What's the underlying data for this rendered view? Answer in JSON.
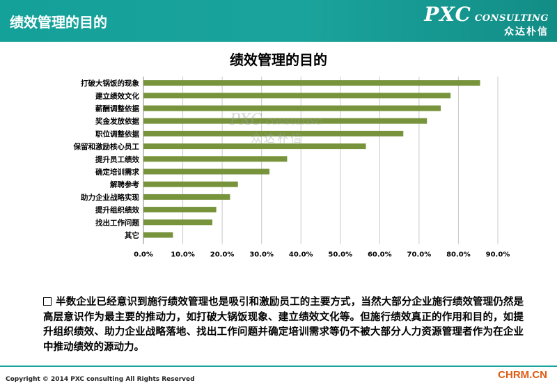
{
  "header": {
    "title": "绩效管理的目的",
    "logo_main": "PXC",
    "logo_sub": "CONSULTING",
    "logo_cn": "众达朴信",
    "color": "#1aa39c"
  },
  "watermark": {
    "main": "PXC",
    "sub": "CONSULTING",
    "cn": "众达朴信"
  },
  "chart_data": {
    "type": "bar",
    "orientation": "horizontal",
    "title": "绩效管理的目的",
    "categories": [
      "打破大锅饭的现象",
      "建立绩效文化",
      "薪酬调整依据",
      "奖金发放依据",
      "职位调整依据",
      "保留和激励核心员工",
      "提升员工绩效",
      "确定培训需求",
      "解聘参考",
      "助力企业战略实现",
      "提升组织绩效",
      "找出工作问题",
      "其它"
    ],
    "values": [
      85.5,
      78,
      75.5,
      72,
      66,
      56.5,
      36.5,
      32,
      24,
      22,
      18.5,
      17.5,
      7.5
    ],
    "xlim": [
      0,
      90
    ],
    "xticks": [
      "0.0%",
      "10.0%",
      "20.0%",
      "30.0%",
      "40.0%",
      "50.0%",
      "60.0%",
      "70.0%",
      "80.0%",
      "90.0%"
    ],
    "bar_color": "#77933c",
    "grid": true
  },
  "paragraph": "半数企业已经意识到施行绩效管理也是吸引和激励员工的主要方式，当然大部分企业施行绩效管理仍然是高层意识作为最主要的推动力，如打破大锅饭现象、建立绩效文化等。但施行绩效真正的作用和目的，如提升组织绩效、助力企业战略落地、找出工作问题并确定培训需求等仍不被大部分人力资源管理者作为在企业中推动绩效的源动力。",
  "footer": {
    "copyright": "Copyright © 2014  PXC consulting All Rights Reserved",
    "site": "CHRM.CN"
  }
}
